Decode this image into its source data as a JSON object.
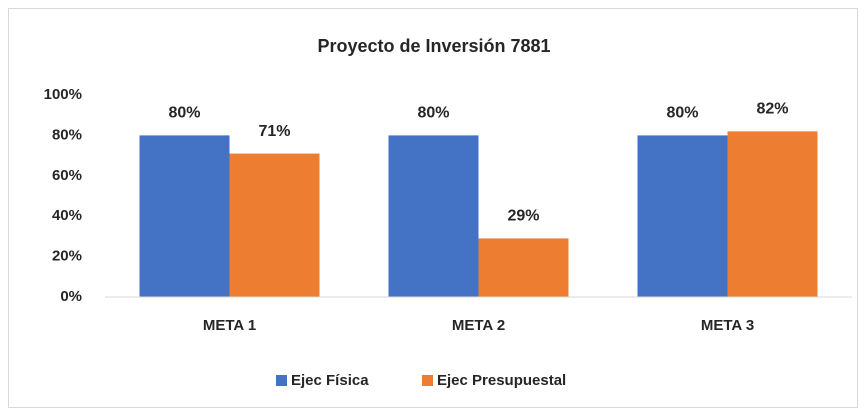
{
  "chart_data": {
    "type": "bar",
    "title": "Proyecto de Inversión 7881",
    "categories": [
      "META 1",
      "META 2",
      "META 3"
    ],
    "series": [
      {
        "name": "Ejec Física",
        "color": "#4472c4",
        "values": [
          80,
          80,
          80
        ],
        "value_labels": [
          "80%",
          "80%",
          "80%"
        ]
      },
      {
        "name": "Ejec Presupuestal",
        "color": "#ed7d31",
        "values": [
          71,
          29,
          82
        ],
        "value_labels": [
          "71%",
          "29%",
          "82%"
        ]
      }
    ],
    "ylim": [
      0,
      100
    ],
    "yticks": [
      {
        "value": 0,
        "label": "0%"
      },
      {
        "value": 20,
        "label": "20%"
      },
      {
        "value": 40,
        "label": "40%"
      },
      {
        "value": 60,
        "label": "60%"
      },
      {
        "value": 80,
        "label": "80%"
      },
      {
        "value": 100,
        "label": "100%"
      }
    ],
    "grid": false,
    "legend": "bottom"
  }
}
